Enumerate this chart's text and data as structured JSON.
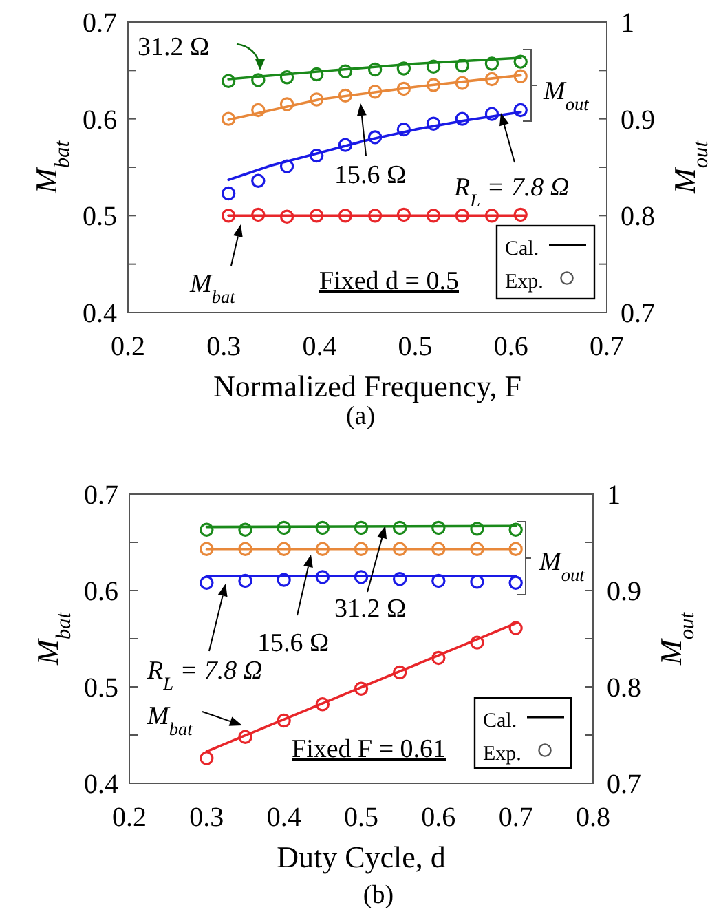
{
  "chart_data": [
    {
      "type": "line",
      "xlabel": "Normalized Frequency, F",
      "ylabel": "M$_{bat}$",
      "y2label": "M$_{out}$",
      "xlim": [
        0.2,
        0.7
      ],
      "xticks": [
        0.2,
        0.3,
        0.4,
        0.5,
        0.6,
        0.7
      ],
      "ylim": [
        0.4,
        0.7
      ],
      "yticks": [
        0.4,
        {
          "value": 0.45,
          "label": null
        },
        0.5,
        {
          "value": 0.55,
          "label": null
        },
        0.6,
        {
          "value": 0.65,
          "label": null
        },
        0.7
      ],
      "y2lim": [
        0.7,
        1
      ],
      "y2ticks": [
        0.7,
        {
          "value": 0.75,
          "label": null
        },
        0.8,
        {
          "value": 0.85,
          "label": null
        },
        0.9,
        {
          "value": 0.95,
          "label": null
        },
        1
      ],
      "grid": false,
      "annotations": [
        "31.2 Ω",
        "15.6 Ω",
        "R$_{L}$ = 7.8 Ω",
        "M$_{bat}$",
        "M$_{out}$",
        "Fixed d = 0.5",
        "Cal.",
        "Exp.",
        "(a)"
      ],
      "series": [
        {
          "type": "line",
          "color": "#e8262a",
          "x": [
            0.305,
            0.615
          ],
          "values": [
            0.5,
            0.5
          ],
          "marker": "none"
        },
        {
          "type": "scatter",
          "color": "#e8262a",
          "x": [
            0.305,
            0.336,
            0.366,
            0.397,
            0.427,
            0.458,
            0.488,
            0.519,
            0.549,
            0.58,
            0.61
          ],
          "values": [
            0.5,
            0.501,
            0.499,
            0.5,
            0.5,
            0.5,
            0.501,
            0.5,
            0.5,
            0.5,
            0.501
          ],
          "marker": "circle"
        },
        {
          "type": "line",
          "axis": "y2",
          "color": "#1a8a1a",
          "x": [
            0.305,
            0.4,
            0.5,
            0.61
          ],
          "values": [
            0.941,
            0.949,
            0.957,
            0.963
          ],
          "marker": "none"
        },
        {
          "type": "scatter",
          "axis": "y2",
          "color": "#1a8a1a",
          "x": [
            0.305,
            0.336,
            0.366,
            0.397,
            0.427,
            0.458,
            0.488,
            0.519,
            0.549,
            0.58,
            0.61
          ],
          "values": [
            0.939,
            0.94,
            0.943,
            0.946,
            0.949,
            0.951,
            0.952,
            0.954,
            0.955,
            0.957,
            0.959
          ],
          "marker": "circle"
        },
        {
          "type": "line",
          "axis": "y2",
          "color": "#e8883a",
          "x": [
            0.305,
            0.4,
            0.5,
            0.61
          ],
          "values": [
            0.899,
            0.92,
            0.933,
            0.945
          ],
          "marker": "none"
        },
        {
          "type": "scatter",
          "axis": "y2",
          "color": "#e8883a",
          "x": [
            0.305,
            0.336,
            0.366,
            0.397,
            0.427,
            0.458,
            0.488,
            0.519,
            0.549,
            0.58,
            0.61
          ],
          "values": [
            0.9,
            0.909,
            0.915,
            0.92,
            0.924,
            0.928,
            0.931,
            0.935,
            0.937,
            0.941,
            0.944
          ],
          "marker": "circle"
        },
        {
          "type": "line",
          "axis": "y2",
          "color": "#1a1ae6",
          "x": [
            0.305,
            0.35,
            0.4,
            0.45,
            0.5,
            0.55,
            0.61
          ],
          "values": [
            0.837,
            0.852,
            0.865,
            0.878,
            0.889,
            0.898,
            0.907
          ],
          "marker": "none"
        },
        {
          "type": "scatter",
          "axis": "y2",
          "color": "#1a1ae6",
          "x": [
            0.305,
            0.336,
            0.366,
            0.397,
            0.427,
            0.458,
            0.488,
            0.519,
            0.549,
            0.58,
            0.61
          ],
          "values": [
            0.823,
            0.836,
            0.851,
            0.862,
            0.873,
            0.881,
            0.889,
            0.895,
            0.9,
            0.905,
            0.909
          ],
          "marker": "circle"
        }
      ]
    },
    {
      "type": "line",
      "xlabel": "Duty Cycle, d",
      "ylabel": "M$_{bat}$",
      "y2label": "M$_{out}$",
      "xlim": [
        0.2,
        0.8
      ],
      "xticks": [
        0.2,
        0.3,
        0.4,
        0.5,
        0.6,
        0.7,
        0.8
      ],
      "ylim": [
        0.4,
        0.7
      ],
      "yticks": [
        0.4,
        {
          "value": 0.45,
          "label": null
        },
        0.5,
        {
          "value": 0.55,
          "label": null
        },
        0.6,
        {
          "value": 0.65,
          "label": null
        },
        0.7
      ],
      "y2lim": [
        0.7,
        1
      ],
      "y2ticks": [
        0.7,
        {
          "value": 0.75,
          "label": null
        },
        0.8,
        {
          "value": 0.85,
          "label": null
        },
        0.9,
        {
          "value": 0.95,
          "label": null
        },
        1
      ],
      "grid": false,
      "annotations": [
        "31.2 Ω",
        "15.6 Ω",
        "R$_{L}$ = 7.8 Ω",
        "M$_{bat}$",
        "M$_{out}$",
        "Fixed F = 0.61",
        "Cal.",
        "Exp.",
        "(b)"
      ],
      "series": [
        {
          "type": "line",
          "color": "#e8262a",
          "x": [
            0.3,
            0.7
          ],
          "values": [
            0.433,
            0.566
          ],
          "marker": "none"
        },
        {
          "type": "scatter",
          "color": "#e8262a",
          "x": [
            0.3,
            0.35,
            0.4,
            0.45,
            0.5,
            0.55,
            0.6,
            0.65,
            0.7
          ],
          "values": [
            0.426,
            0.448,
            0.465,
            0.482,
            0.498,
            0.515,
            0.53,
            0.546,
            0.561
          ],
          "marker": "circle"
        },
        {
          "type": "line",
          "axis": "y2",
          "color": "#1a8a1a",
          "x": [
            0.3,
            0.7
          ],
          "values": [
            0.966,
            0.967
          ],
          "marker": "none"
        },
        {
          "type": "scatter",
          "axis": "y2",
          "color": "#1a8a1a",
          "x": [
            0.3,
            0.35,
            0.4,
            0.45,
            0.5,
            0.55,
            0.6,
            0.65,
            0.7
          ],
          "values": [
            0.963,
            0.963,
            0.965,
            0.965,
            0.965,
            0.965,
            0.965,
            0.964,
            0.963
          ],
          "marker": "circle"
        },
        {
          "type": "line",
          "axis": "y2",
          "color": "#e8883a",
          "x": [
            0.3,
            0.7
          ],
          "values": [
            0.943,
            0.943
          ],
          "marker": "none"
        },
        {
          "type": "scatter",
          "axis": "y2",
          "color": "#e8883a",
          "x": [
            0.3,
            0.35,
            0.4,
            0.45,
            0.5,
            0.55,
            0.6,
            0.65,
            0.7
          ],
          "values": [
            0.943,
            0.943,
            0.943,
            0.943,
            0.943,
            0.943,
            0.943,
            0.943,
            0.943
          ],
          "marker": "circle"
        },
        {
          "type": "line",
          "axis": "y2",
          "color": "#1a1ae6",
          "x": [
            0.3,
            0.7
          ],
          "values": [
            0.915,
            0.915
          ],
          "marker": "none"
        },
        {
          "type": "scatter",
          "axis": "y2",
          "color": "#1a1ae6",
          "x": [
            0.3,
            0.35,
            0.4,
            0.45,
            0.5,
            0.55,
            0.6,
            0.65,
            0.7
          ],
          "values": [
            0.908,
            0.91,
            0.911,
            0.914,
            0.914,
            0.912,
            0.91,
            0.909,
            0.908
          ],
          "marker": "circle"
        }
      ]
    }
  ]
}
